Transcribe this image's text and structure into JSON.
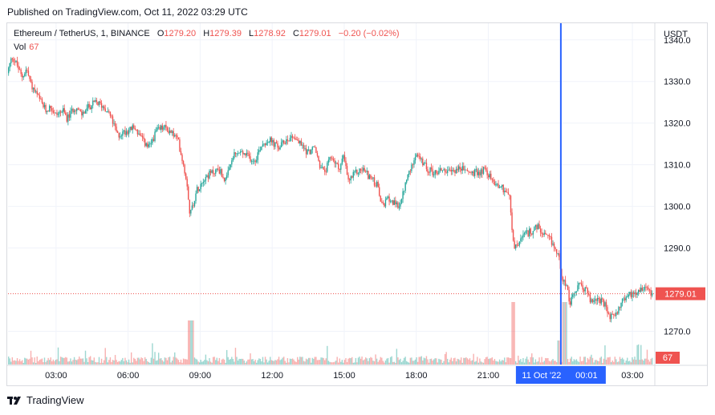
{
  "published": "Published on TradingView.com, Oct 11, 2022 03:29 UTC",
  "legend": {
    "symbol": "Ethereum / TetherUS, 1, BINANCE",
    "open_label": "O",
    "open": "1279.20",
    "high_label": "H",
    "high": "1279.39",
    "low_label": "L",
    "low": "1278.92",
    "close_label": "C",
    "close": "1279.01",
    "change": "−0.20 (−0.02%)",
    "volume_label": "Vol",
    "volume": "67"
  },
  "footer": {
    "brand": "TradingView",
    "logo_icon": "tradingview-logo-icon"
  },
  "colors": {
    "up": "#26a69a",
    "down": "#ef5350",
    "crosshair": "#2962ff",
    "grid": "#f0f3fa"
  },
  "chart_data": {
    "type": "candlestick",
    "currency": "USDT",
    "ylim": [
      1262,
      1344
    ],
    "y_ticks": [
      1340,
      1330,
      1320,
      1310,
      1300,
      1290,
      1270
    ],
    "x_ticks": [
      "03:00",
      "06:00",
      "09:00",
      "12:00",
      "15:00",
      "18:00",
      "21:00",
      "03:00"
    ],
    "x_tick_hours": [
      3,
      6,
      9,
      12,
      15,
      18,
      21,
      27
    ],
    "x_range_hours": [
      1.0,
      27.9
    ],
    "last_price": "1279.01",
    "last_price_value": 1279.01,
    "last_volume": "67",
    "crosshair": {
      "date_label": "11 Oct '22",
      "time_label": "00:01",
      "hour": 24.02
    },
    "price_path": [
      [
        1.0,
        1332
      ],
      [
        1.2,
        1336
      ],
      [
        1.4,
        1334
      ],
      [
        1.6,
        1331
      ],
      [
        1.8,
        1333
      ],
      [
        2.0,
        1329
      ],
      [
        2.3,
        1326
      ],
      [
        2.6,
        1323
      ],
      [
        2.8,
        1324
      ],
      [
        3.0,
        1322
      ],
      [
        3.3,
        1323
      ],
      [
        3.5,
        1321
      ],
      [
        3.8,
        1324
      ],
      [
        4.1,
        1322
      ],
      [
        4.4,
        1324
      ],
      [
        4.7,
        1325
      ],
      [
        5.0,
        1324
      ],
      [
        5.2,
        1323
      ],
      [
        5.4,
        1320
      ],
      [
        5.6,
        1317
      ],
      [
        5.9,
        1318
      ],
      [
        6.3,
        1319
      ],
      [
        6.6,
        1316
      ],
      [
        6.9,
        1314
      ],
      [
        7.2,
        1318
      ],
      [
        7.5,
        1319
      ],
      [
        7.8,
        1318
      ],
      [
        8.1,
        1316
      ],
      [
        8.3,
        1311
      ],
      [
        8.5,
        1305
      ],
      [
        8.6,
        1298
      ],
      [
        8.75,
        1301
      ],
      [
        8.9,
        1304
      ],
      [
        9.2,
        1307
      ],
      [
        9.5,
        1308
      ],
      [
        9.8,
        1309
      ],
      [
        10.1,
        1306
      ],
      [
        10.4,
        1312
      ],
      [
        10.7,
        1313
      ],
      [
        11.0,
        1312
      ],
      [
        11.3,
        1311
      ],
      [
        11.6,
        1315
      ],
      [
        11.9,
        1316
      ],
      [
        12.3,
        1314
      ],
      [
        12.6,
        1316
      ],
      [
        12.9,
        1317
      ],
      [
        13.2,
        1315
      ],
      [
        13.5,
        1313
      ],
      [
        13.8,
        1314
      ],
      [
        14.0,
        1310
      ],
      [
        14.2,
        1308
      ],
      [
        14.5,
        1312
      ],
      [
        14.8,
        1309
      ],
      [
        15.0,
        1312
      ],
      [
        15.2,
        1306
      ],
      [
        15.5,
        1308
      ],
      [
        15.8,
        1309
      ],
      [
        16.1,
        1307
      ],
      [
        16.4,
        1305
      ],
      [
        16.6,
        1300
      ],
      [
        16.9,
        1302
      ],
      [
        17.2,
        1300
      ],
      [
        17.4,
        1301
      ],
      [
        17.6,
        1306
      ],
      [
        17.8,
        1309
      ],
      [
        18.0,
        1313
      ],
      [
        18.2,
        1311
      ],
      [
        18.5,
        1309
      ],
      [
        18.8,
        1308
      ],
      [
        19.1,
        1309
      ],
      [
        19.4,
        1308
      ],
      [
        19.7,
        1309
      ],
      [
        20.0,
        1309
      ],
      [
        20.3,
        1308
      ],
      [
        20.6,
        1308
      ],
      [
        20.9,
        1309
      ],
      [
        21.2,
        1306
      ],
      [
        21.5,
        1305
      ],
      [
        21.7,
        1304
      ],
      [
        21.9,
        1303
      ],
      [
        22.0,
        1295
      ],
      [
        22.1,
        1290
      ],
      [
        22.3,
        1291
      ],
      [
        22.5,
        1293
      ],
      [
        22.8,
        1294
      ],
      [
        23.1,
        1295
      ],
      [
        23.3,
        1293
      ],
      [
        23.6,
        1292
      ],
      [
        23.8,
        1290
      ],
      [
        24.0,
        1287
      ],
      [
        24.1,
        1283
      ],
      [
        24.3,
        1281
      ],
      [
        24.4,
        1276
      ],
      [
        24.6,
        1279
      ],
      [
        24.8,
        1281
      ],
      [
        25.1,
        1280
      ],
      [
        25.3,
        1277
      ],
      [
        25.6,
        1278
      ],
      [
        25.9,
        1276
      ],
      [
        26.1,
        1273
      ],
      [
        26.4,
        1275
      ],
      [
        26.7,
        1278
      ],
      [
        27.0,
        1279
      ],
      [
        27.3,
        1280
      ],
      [
        27.6,
        1281
      ],
      [
        27.85,
        1279.01
      ]
    ]
  }
}
